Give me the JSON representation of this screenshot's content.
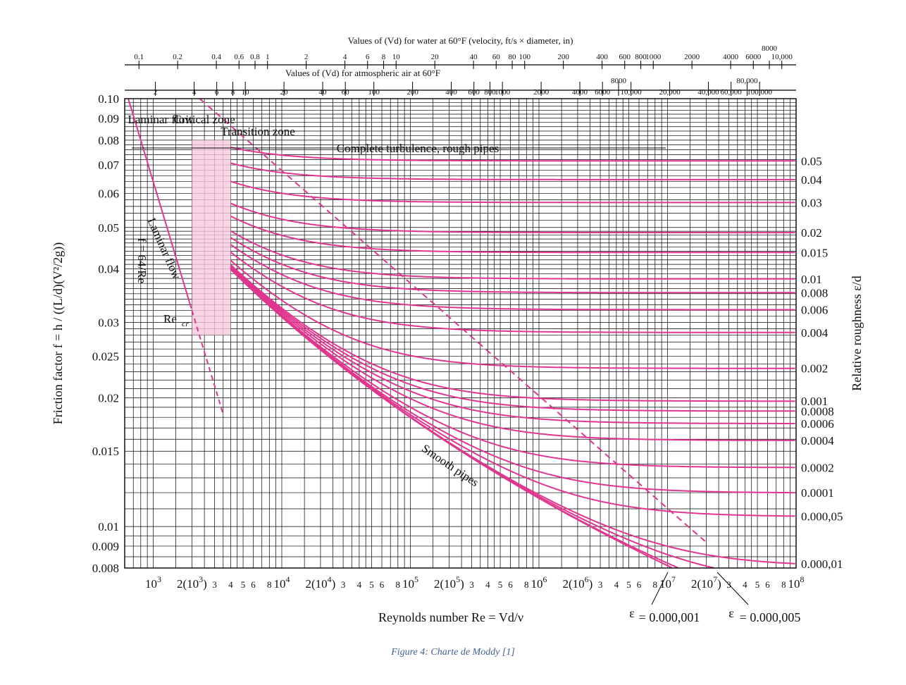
{
  "caption": "Figure 4: Charte de Moddy [1]",
  "colors": {
    "curve": "#e0368f",
    "grid": "#000000",
    "text": "#111111",
    "shade": "#f6c9dd"
  },
  "chart_data": {
    "type": "line",
    "title": "",
    "xlabel": "Reynolds number Re = Vd/ν",
    "ylabel": "Friction factor f = h / ((L/d)(V²/2g))",
    "right_label": "Relative roughness ε/d",
    "x_scale": "log",
    "y_scale": "log",
    "xlim": [
      600,
      100000000
    ],
    "ylim": [
      0.008,
      0.1
    ],
    "grid": true,
    "y_ticks": [
      {
        "v": 0.1,
        "label": "0.10"
      },
      {
        "v": 0.09,
        "label": "0.09"
      },
      {
        "v": 0.08,
        "label": "0.08"
      },
      {
        "v": 0.07,
        "label": "0.07"
      },
      {
        "v": 0.06,
        "label": "0.06"
      },
      {
        "v": 0.05,
        "label": "0.05"
      },
      {
        "v": 0.04,
        "label": "0.04"
      },
      {
        "v": 0.03,
        "label": "0.03"
      },
      {
        "v": 0.025,
        "label": "0.025"
      },
      {
        "v": 0.02,
        "label": "0.02"
      },
      {
        "v": 0.015,
        "label": "0.015"
      },
      {
        "v": 0.01,
        "label": "0.01"
      },
      {
        "v": 0.009,
        "label": "0.009"
      },
      {
        "v": 0.008,
        "label": "0.008"
      }
    ],
    "x_ticks": [
      {
        "v": 1000,
        "base": "10",
        "sup": "3"
      },
      {
        "v": 2000,
        "base": "2(10",
        "sup": "3",
        "tail": ")"
      },
      {
        "v": 3000,
        "base": "3"
      },
      {
        "v": 4000,
        "base": "4"
      },
      {
        "v": 5000,
        "base": "5"
      },
      {
        "v": 6000,
        "base": "6"
      },
      {
        "v": 8000,
        "base": "8"
      },
      {
        "v": 10000,
        "base": "10",
        "sup": "4"
      },
      {
        "v": 20000,
        "base": "2(10",
        "sup": "4",
        "tail": ")"
      },
      {
        "v": 30000,
        "base": "3"
      },
      {
        "v": 40000,
        "base": "4"
      },
      {
        "v": 50000,
        "base": "5"
      },
      {
        "v": 60000,
        "base": "6"
      },
      {
        "v": 80000,
        "base": "8"
      },
      {
        "v": 100000,
        "base": "10",
        "sup": "5"
      },
      {
        "v": 200000,
        "base": "2(10",
        "sup": "5",
        "tail": ")"
      },
      {
        "v": 300000,
        "base": "3"
      },
      {
        "v": 400000,
        "base": "4"
      },
      {
        "v": 500000,
        "base": "5"
      },
      {
        "v": 600000,
        "base": "6"
      },
      {
        "v": 800000,
        "base": "8"
      },
      {
        "v": 1000000,
        "base": "10",
        "sup": "6"
      },
      {
        "v": 2000000,
        "base": "2(10",
        "sup": "6",
        "tail": ")"
      },
      {
        "v": 3000000,
        "base": "3"
      },
      {
        "v": 4000000,
        "base": "4"
      },
      {
        "v": 5000000,
        "base": "5"
      },
      {
        "v": 6000000,
        "base": "6"
      },
      {
        "v": 8000000,
        "base": "8"
      },
      {
        "v": 10000000,
        "base": "10",
        "sup": "7"
      },
      {
        "v": 20000000,
        "base": "2(10",
        "sup": "7",
        "tail": ")"
      },
      {
        "v": 30000000,
        "base": "3"
      },
      {
        "v": 40000000,
        "base": "4"
      },
      {
        "v": 50000000,
        "base": "5"
      },
      {
        "v": 60000000,
        "base": "6"
      },
      {
        "v": 80000000,
        "base": "8"
      },
      {
        "v": 100000000,
        "base": "10",
        "sup": "8"
      }
    ],
    "water_axis": {
      "label": "Values of (Vd) for water at 60°F (velocity, ft/s × diameter, in)",
      "ticks": [
        {
          "v": 0.1,
          "label": "0.1"
        },
        {
          "v": 0.2,
          "label": "0.2"
        },
        {
          "v": 0.4,
          "label": "0.4"
        },
        {
          "v": 0.6,
          "label": "0.6"
        },
        {
          "v": 0.8,
          "label": "0.8"
        },
        {
          "v": 1,
          "label": "1"
        },
        {
          "v": 2,
          "label": "2"
        },
        {
          "v": 4,
          "label": "4"
        },
        {
          "v": 6,
          "label": "6"
        },
        {
          "v": 8,
          "label": "8"
        },
        {
          "v": 10,
          "label": "10"
        },
        {
          "v": 20,
          "label": "20"
        },
        {
          "v": 40,
          "label": "40"
        },
        {
          "v": 60,
          "label": "60"
        },
        {
          "v": 80,
          "label": "80"
        },
        {
          "v": 100,
          "label": "100"
        },
        {
          "v": 200,
          "label": "200"
        },
        {
          "v": 400,
          "label": "400"
        },
        {
          "v": 600,
          "label": "600"
        },
        {
          "v": 800,
          "label": "800"
        },
        {
          "v": 1000,
          "label": "1000"
        },
        {
          "v": 2000,
          "label": "2000"
        },
        {
          "v": 4000,
          "label": "4000"
        },
        {
          "v": 6000,
          "label": "6000"
        },
        {
          "v": 8000,
          "label": "8000",
          "raised": true
        },
        {
          "v": 10000,
          "label": "10,000"
        }
      ]
    },
    "air_axis": {
      "label": "Values of (Vd) for atmospheric air at 60°F",
      "ticks": [
        {
          "v": 2,
          "label": "2"
        },
        {
          "v": 4,
          "label": "4"
        },
        {
          "v": 6,
          "label": "6"
        },
        {
          "v": 8,
          "label": "8"
        },
        {
          "v": 10,
          "label": "10"
        },
        {
          "v": 20,
          "label": "20"
        },
        {
          "v": 40,
          "label": "40"
        },
        {
          "v": 60,
          "label": "60"
        },
        {
          "v": 100,
          "label": "100"
        },
        {
          "v": 200,
          "label": "200"
        },
        {
          "v": 400,
          "label": "400"
        },
        {
          "v": 600,
          "label": "600"
        },
        {
          "v": 800,
          "label": "800"
        },
        {
          "v": 1000,
          "label": "1000"
        },
        {
          "v": 2000,
          "label": "2000"
        },
        {
          "v": 4000,
          "label": "4000"
        },
        {
          "v": 6000,
          "label": "6000"
        },
        {
          "v": 8000,
          "label": "8000",
          "raised": true
        },
        {
          "v": 10000,
          "label": "10,000"
        },
        {
          "v": 20000,
          "label": "20,000"
        },
        {
          "v": 40000,
          "label": "40,000"
        },
        {
          "v": 60000,
          "label": "60,000"
        },
        {
          "v": 80000,
          "label": "80,000",
          "raised": true
        },
        {
          "v": 100000,
          "label": "100,000"
        }
      ]
    },
    "roughness_curves": [
      {
        "eps": 0.05,
        "label": "0.05"
      },
      {
        "eps": 0.04,
        "label": "0.04"
      },
      {
        "eps": 0.03,
        "label": "0.03"
      },
      {
        "eps": 0.02,
        "label": "0.02"
      },
      {
        "eps": 0.015,
        "label": "0.015"
      },
      {
        "eps": 0.01,
        "label": "0.01"
      },
      {
        "eps": 0.008,
        "label": "0.008"
      },
      {
        "eps": 0.006,
        "label": "0.006"
      },
      {
        "eps": 0.004,
        "label": "0.004"
      },
      {
        "eps": 0.002,
        "label": "0.002"
      },
      {
        "eps": 0.001,
        "label": "0.001"
      },
      {
        "eps": 0.0008,
        "label": "0.0008"
      },
      {
        "eps": 0.0006,
        "label": "0.0006"
      },
      {
        "eps": 0.0004,
        "label": "0.0004"
      },
      {
        "eps": 0.0002,
        "label": "0.0002"
      },
      {
        "eps": 0.0001,
        "label": "0.0001"
      },
      {
        "eps": 5e-05,
        "label": "0.000,05"
      },
      {
        "eps": 1e-05,
        "label": "0.000,01"
      },
      {
        "eps": 5e-06,
        "label": ""
      },
      {
        "eps": 1e-06,
        "label": ""
      },
      {
        "eps": 0,
        "label": ""
      }
    ],
    "labels": {
      "laminar_flow_zone": "Laminar flow",
      "critical_zone": "Critical zone",
      "transition_zone": "Transition zone",
      "complete_turbulence": "Complete turbulence, rough pipes",
      "laminar_line": "Laminar flow",
      "laminar_formula": "f = 64/Re",
      "recr": "Re",
      "recr_sub": "cr",
      "smooth": "Smooth pipes",
      "eps_min_value": "= 0.000,001",
      "eps_min2_value": "= 0.000,005"
    },
    "recr": 2000
  }
}
